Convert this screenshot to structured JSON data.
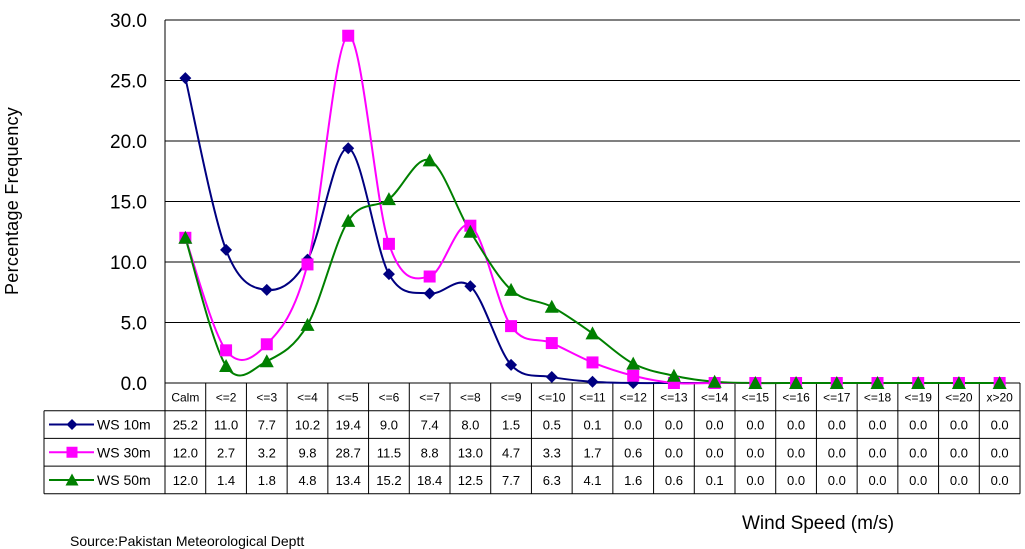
{
  "chart_data": {
    "type": "line",
    "ylabel": "Percentage Frequency",
    "xlabel": "Wind Speed (m/s)",
    "source": "Source:Pakistan Meteorological Deptt",
    "ylim": [
      0,
      30
    ],
    "yticks": [
      "0.0",
      "5.0",
      "10.0",
      "15.0",
      "20.0",
      "25.0",
      "30.0"
    ],
    "grid": true,
    "legend": "data-table",
    "categories": [
      "Calm",
      "<=2",
      "<=3",
      "<=4",
      "<=5",
      "<=6",
      "<=7",
      "<=8",
      "<=9",
      "<=10",
      "<=11",
      "<=12",
      "<=13",
      "<=14",
      "<=15",
      "<=16",
      "<=17",
      "<=18",
      "<=19",
      "<=20",
      "x>20"
    ],
    "series": [
      {
        "name": "WS 10m",
        "color": "#000080",
        "marker": "diamond",
        "values": [
          25.2,
          11.0,
          7.7,
          10.2,
          19.4,
          9.0,
          7.4,
          8.0,
          1.5,
          0.5,
          0.1,
          0.0,
          0.0,
          0.0,
          0.0,
          0.0,
          0.0,
          0.0,
          0.0,
          0.0,
          0.0
        ]
      },
      {
        "name": "WS 30m",
        "color": "#ff00ff",
        "marker": "square",
        "values": [
          12.0,
          2.7,
          3.2,
          9.8,
          28.7,
          11.5,
          8.8,
          13.0,
          4.7,
          3.3,
          1.7,
          0.6,
          0.0,
          0.0,
          0.0,
          0.0,
          0.0,
          0.0,
          0.0,
          0.0,
          0.0
        ]
      },
      {
        "name": "WS 50m",
        "color": "#008000",
        "marker": "triangle",
        "values": [
          12.0,
          1.4,
          1.8,
          4.8,
          13.4,
          15.2,
          18.4,
          12.5,
          7.7,
          6.3,
          4.1,
          1.6,
          0.6,
          0.1,
          0.0,
          0.0,
          0.0,
          0.0,
          0.0,
          0.0,
          0.0
        ]
      }
    ],
    "table_values": [
      [
        "25.2",
        "11.0",
        "7.7",
        "10.2",
        "19.4",
        "9.0",
        "7.4",
        "8.0",
        "1.5",
        "0.5",
        "0.1",
        "0.0",
        "0.0",
        "0.0",
        "0.0",
        "0.0",
        "0.0",
        "0.0",
        "0.0",
        "0.0",
        "0.0"
      ],
      [
        "12.0",
        "2.7",
        "3.2",
        "9.8",
        "28.7",
        "11.5",
        "8.8",
        "13.0",
        "4.7",
        "3.3",
        "1.7",
        "0.6",
        "0.0",
        "0.0",
        "0.0",
        "0.0",
        "0.0",
        "0.0",
        "0.0",
        "0.0",
        "0.0"
      ],
      [
        "12.0",
        "1.4",
        "1.8",
        "4.8",
        "13.4",
        "15.2",
        "18.4",
        "12.5",
        "7.7",
        "6.3",
        "4.1",
        "1.6",
        "0.6",
        "0.1",
        "0.0",
        "0.0",
        "0.0",
        "0.0",
        "0.0",
        "0.0",
        "0.0"
      ]
    ]
  }
}
